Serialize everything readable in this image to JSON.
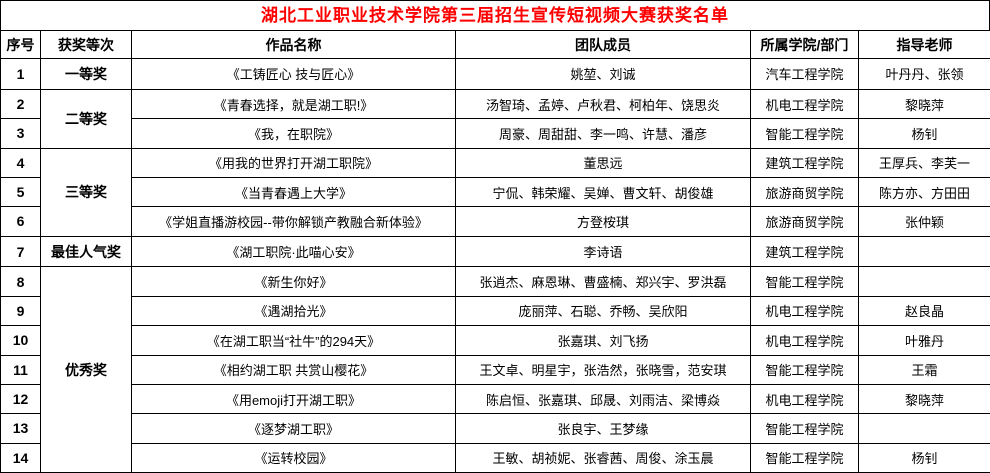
{
  "title": "湖北工业职业技术学院第三届招生宣传短视频大赛获奖名单",
  "colors": {
    "title_text": "#ff0000",
    "body_text": "#000000",
    "border": "#000000"
  },
  "table": {
    "columns": [
      "序号",
      "获奖等次",
      "作品名称",
      "团队成员",
      "所属学院/部门",
      "指导老师"
    ],
    "award_groups": [
      {
        "label": "一等奖",
        "start": 0,
        "span": 1
      },
      {
        "label": "二等奖",
        "start": 1,
        "span": 2
      },
      {
        "label": "三等奖",
        "start": 3,
        "span": 3
      },
      {
        "label": "最佳人气奖",
        "start": 6,
        "span": 1
      },
      {
        "label": "优秀奖",
        "start": 7,
        "span": 7
      }
    ],
    "rows": [
      {
        "no": "1",
        "work": "《工铸匠心 技与匠心》",
        "members": "姚堃、刘诚",
        "college": "汽车工程学院",
        "advisor": "叶丹丹、张领"
      },
      {
        "no": "2",
        "work": "《青春选择，就是湖工职!》",
        "members": "汤智琦、孟婷、卢秋君、柯柏年、饶思炎",
        "college": "机电工程学院",
        "advisor": "黎晓萍"
      },
      {
        "no": "3",
        "work": "《我，在职院》",
        "members": "周豪、周甜甜、李一鸣、许慧、潘彦",
        "college": "智能工程学院",
        "advisor": "杨钊"
      },
      {
        "no": "4",
        "work": "《用我的世界打开湖工职院》",
        "members": "董思远",
        "college": "建筑工程学院",
        "advisor": "王厚兵、李芙一"
      },
      {
        "no": "5",
        "work": "《当青春遇上大学》",
        "members": "宁侃、韩荣耀、吴婵、曹文轩、胡俊雄",
        "college": "旅游商贸学院",
        "advisor": "陈方亦、方田田"
      },
      {
        "no": "6",
        "work": "《学姐直播游校园--带你解锁产教融合新体验》",
        "members": "方登桉琪",
        "college": "旅游商贸学院",
        "advisor": "张仲颖"
      },
      {
        "no": "7",
        "work": "《湖工职院·此喵心安》",
        "members": "李诗语",
        "college": "建筑工程学院",
        "advisor": ""
      },
      {
        "no": "8",
        "work": "《新生你好》",
        "members": "张逍杰、麻恩琳、曹盛楠、郑兴宇、罗洪磊",
        "college": "智能工程学院",
        "advisor": ""
      },
      {
        "no": "9",
        "work": "《遇湖拾光》",
        "members": "庞丽萍、石聪、乔畅、吴欣阳",
        "college": "机电工程学院",
        "advisor": "赵良晶"
      },
      {
        "no": "10",
        "work": "《在湖工职当“社牛”的294天》",
        "members": "张嘉琪、刘飞扬",
        "college": "机电工程学院",
        "advisor": "叶雅丹"
      },
      {
        "no": "11",
        "work": "《相约湖工职 共赏山樱花》",
        "members": "王文卓、明星宇，张浩然，张晓雪，范安琪",
        "college": "智能工程学院",
        "advisor": "王霜"
      },
      {
        "no": "12",
        "work": "《用emoji打开湖工职》",
        "members": "陈启恒、张嘉琪、邱晟、刘雨洁、梁博焱",
        "college": "机电工程学院",
        "advisor": "黎晓萍"
      },
      {
        "no": "13",
        "work": "《逐梦湖工职》",
        "members": "张良宇、王梦缘",
        "college": "智能工程学院",
        "advisor": ""
      },
      {
        "no": "14",
        "work": "《运转校园》",
        "members": "王敏、胡祯妮、张睿茜、周俊、涂玉晨",
        "college": "智能工程学院",
        "advisor": "杨钊"
      }
    ]
  }
}
